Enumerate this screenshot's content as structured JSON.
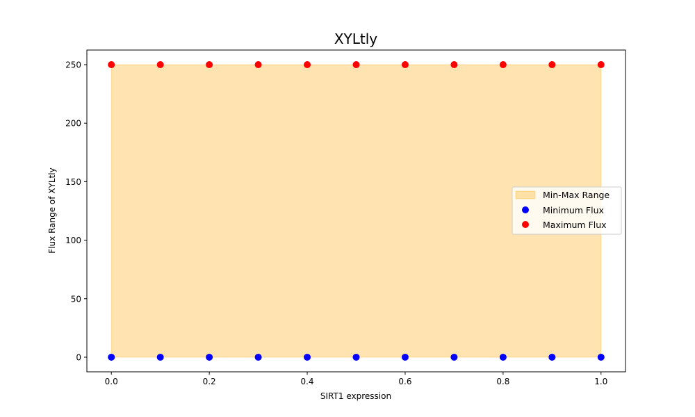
{
  "chart_data": {
    "type": "scatter",
    "title": "XYLtly",
    "xlabel": "SIRT1 expression",
    "ylabel": "Flux Range of XYLtly",
    "xlim": [
      -0.05,
      1.05
    ],
    "ylim": [
      -12.5,
      262.5
    ],
    "xticks": [
      0.0,
      0.2,
      0.4,
      0.6,
      0.8,
      1.0
    ],
    "xtick_labels": [
      "0.0",
      "0.2",
      "0.4",
      "0.6",
      "0.8",
      "1.0"
    ],
    "yticks": [
      0,
      50,
      100,
      150,
      200,
      250
    ],
    "ytick_labels": [
      "0",
      "50",
      "100",
      "150",
      "200",
      "250"
    ],
    "x": [
      0.0,
      0.1,
      0.2,
      0.3,
      0.4,
      0.5,
      0.6,
      0.7,
      0.8,
      0.9,
      1.0
    ],
    "fill": {
      "name": "Min-Max Range",
      "color": "#ffa500",
      "opacity": 0.3
    },
    "series": [
      {
        "name": "Minimum Flux",
        "color": "#0000ff",
        "values": [
          0,
          0,
          0,
          0,
          0,
          0,
          0,
          0,
          0,
          0,
          0
        ]
      },
      {
        "name": "Maximum Flux",
        "color": "#ff0000",
        "values": [
          250,
          250,
          250,
          250,
          250,
          250,
          250,
          250,
          250,
          250,
          250
        ]
      }
    ],
    "grid": false,
    "legend_position": "center-right"
  }
}
